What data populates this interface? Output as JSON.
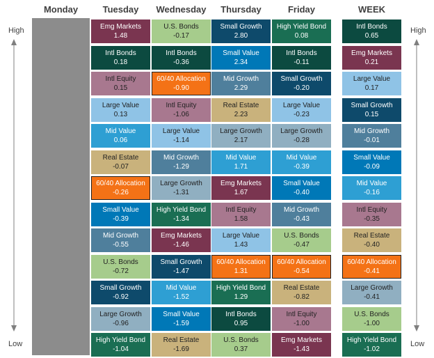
{
  "headers": {
    "monday": "Monday",
    "tuesday": "Tuesday",
    "wednesday": "Wednesday",
    "thursday": "Thursday",
    "friday": "Friday",
    "week": "WEEK"
  },
  "axis": {
    "high": "High",
    "low": "Low"
  },
  "colors": {
    "Emg Markets": "#7a3550",
    "Intl Bonds": "#0c4a40",
    "Intl Equity": "#a8788f",
    "Large Value": "#8fc3e6",
    "Mid Value": "#2e9fd3",
    "Real Estate": "#c9b27c",
    "60/40 Allocation": "#f47216",
    "Small Value": "#0078b7",
    "Mid Growth": "#4f7f9c",
    "U.S. Bonds": "#a6cc8c",
    "Small Growth": "#0e4a6b",
    "Large Growth": "#90afc1",
    "High Yield Bond": "#1a6e53",
    "monday_column": "#8c8c8c"
  },
  "chart_data": {
    "type": "table",
    "columns": [
      {
        "key": "tuesday",
        "rows": [
          {
            "name": "Emg Markets",
            "value": "1.48"
          },
          {
            "name": "Intl Bonds",
            "value": "0.18"
          },
          {
            "name": "Intl Equity",
            "value": "0.15"
          },
          {
            "name": "Large Value",
            "value": "0.13"
          },
          {
            "name": "Mid Value",
            "value": "0.06"
          },
          {
            "name": "Real Estate",
            "value": "-0.07"
          },
          {
            "name": "60/40 Allocation",
            "value": "-0.26"
          },
          {
            "name": "Small Value",
            "value": "-0.39"
          },
          {
            "name": "Mid Growth",
            "value": "-0.55"
          },
          {
            "name": "U.S. Bonds",
            "value": "-0.72"
          },
          {
            "name": "Small Growth",
            "value": "-0.92"
          },
          {
            "name": "Large Growth",
            "value": "-0.96"
          },
          {
            "name": "High Yield Bond",
            "value": "-1.04"
          }
        ]
      },
      {
        "key": "wednesday",
        "rows": [
          {
            "name": "U.S. Bonds",
            "value": "-0.17"
          },
          {
            "name": "Intl Bonds",
            "value": "-0.36"
          },
          {
            "name": "60/40 Allocation",
            "value": "-0.90"
          },
          {
            "name": "Intl Equity",
            "value": "-1.06"
          },
          {
            "name": "Large Value",
            "value": "-1.14"
          },
          {
            "name": "Mid Growth",
            "value": "-1.29"
          },
          {
            "name": "Large Growth",
            "value": "-1.31"
          },
          {
            "name": "High Yield Bond",
            "value": "-1.34"
          },
          {
            "name": "Emg Markets",
            "value": "-1.46"
          },
          {
            "name": "Small Growth",
            "value": "-1.47"
          },
          {
            "name": "Mid Value",
            "value": "-1.52"
          },
          {
            "name": "Small Value",
            "value": "-1.59"
          },
          {
            "name": "Real Estate",
            "value": "-1.69"
          }
        ]
      },
      {
        "key": "thursday",
        "rows": [
          {
            "name": "Small Growth",
            "value": "2.80"
          },
          {
            "name": "Small Value",
            "value": "2.34"
          },
          {
            "name": "Mid Growth",
            "value": "2.29"
          },
          {
            "name": "Real Estate",
            "value": "2.23"
          },
          {
            "name": "Large Growth",
            "value": "2.17"
          },
          {
            "name": "Mid Value",
            "value": "1.71"
          },
          {
            "name": "Emg Markets",
            "value": "1.67"
          },
          {
            "name": "Intl Equity",
            "value": "1.58"
          },
          {
            "name": "Large Value",
            "value": "1.43"
          },
          {
            "name": "60/40 Allocation",
            "value": "1.31"
          },
          {
            "name": "High Yield Bond",
            "value": "1.29"
          },
          {
            "name": "Intl Bonds",
            "value": "0.95"
          },
          {
            "name": "U.S. Bonds",
            "value": "0.37"
          }
        ]
      },
      {
        "key": "friday",
        "rows": [
          {
            "name": "High Yield Bond",
            "value": "0.08"
          },
          {
            "name": "Intl Bonds",
            "value": "-0.11"
          },
          {
            "name": "Small Growth",
            "value": "-0.20"
          },
          {
            "name": "Large Value",
            "value": "-0.23"
          },
          {
            "name": "Large Growth",
            "value": "-0.28"
          },
          {
            "name": "Mid Value",
            "value": "-0.39"
          },
          {
            "name": "Small Value",
            "value": "-0.40"
          },
          {
            "name": "Mid Growth",
            "value": "-0.43"
          },
          {
            "name": "U.S. Bonds",
            "value": "-0.47"
          },
          {
            "name": "60/40 Allocation",
            "value": "-0.54"
          },
          {
            "name": "Real Estate",
            "value": "-0.82"
          },
          {
            "name": "Intl Equity",
            "value": "-1.00"
          },
          {
            "name": "Emg Markets",
            "value": "-1.43"
          }
        ]
      },
      {
        "key": "week",
        "rows": [
          {
            "name": "Intl Bonds",
            "value": "0.65"
          },
          {
            "name": "Emg Markets",
            "value": "0.21"
          },
          {
            "name": "Large Value",
            "value": "0.17"
          },
          {
            "name": "Small Growth",
            "value": "0.15"
          },
          {
            "name": "Mid Growth",
            "value": "-0.01"
          },
          {
            "name": "Small Value",
            "value": "-0.09"
          },
          {
            "name": "Mid Value",
            "value": "-0.16"
          },
          {
            "name": "Intl Equity",
            "value": "-0.35"
          },
          {
            "name": "Real Estate",
            "value": "-0.40"
          },
          {
            "name": "60/40 Allocation",
            "value": "-0.41"
          },
          {
            "name": "Large Growth",
            "value": "-0.41"
          },
          {
            "name": "U.S. Bonds",
            "value": "-1.00"
          },
          {
            "name": "High Yield Bond",
            "value": "-1.02"
          }
        ]
      }
    ]
  }
}
